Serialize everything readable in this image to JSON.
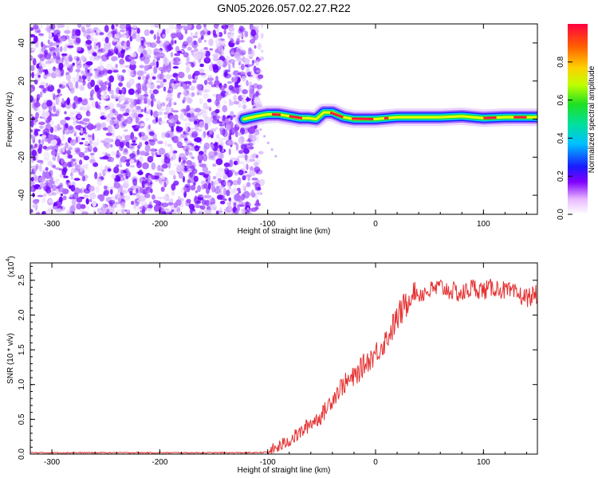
{
  "title": "GN05.2026.057.02.27.R22",
  "chart_data": [
    {
      "type": "heatmap",
      "name": "spectrogram",
      "xlabel": "Height of straight line (km)",
      "ylabel": "Frequency (Hz)",
      "xlim": [
        -320,
        150
      ],
      "ylim": [
        -50,
        50
      ],
      "x_ticks": [
        -300,
        -200,
        -100,
        0,
        100
      ],
      "y_ticks": [
        -40,
        -20,
        0,
        20,
        40
      ],
      "noise_region_x": [
        -320,
        -110
      ],
      "signal_line": {
        "x": [
          -122,
          -110,
          -100,
          -90,
          -80,
          -70,
          -62,
          -55,
          -48,
          -40,
          -30,
          -20,
          -10,
          0,
          10,
          20,
          40,
          60,
          80,
          100,
          120,
          150
        ],
        "y": [
          0,
          1.5,
          2.5,
          2.5,
          1.5,
          0.5,
          0.5,
          0,
          3.5,
          3.5,
          1,
          0,
          0,
          0,
          0.5,
          1,
          1,
          1,
          1.5,
          0.5,
          1,
          1
        ]
      },
      "colorbar": {
        "label": "Normalized spectral amplitude",
        "range": [
          0.0,
          1.0
        ],
        "ticks": [
          0.0,
          0.2,
          0.4,
          0.6,
          0.8
        ]
      }
    },
    {
      "type": "line",
      "name": "snr",
      "xlabel": "Height of straight line (km)",
      "ylabel": "SNR (10 * v/v)",
      "scale_label": "(x10",
      "scale_exponent": "4",
      "xlim": [
        -320,
        150
      ],
      "ylim": [
        0,
        2.75
      ],
      "x_ticks": [
        -300,
        -200,
        -100,
        0,
        100
      ],
      "y_ticks": [
        0.0,
        0.5,
        1.0,
        1.5,
        2.0,
        2.5
      ],
      "color": "#e53030",
      "series": [
        {
          "name": "SNR",
          "x": [
            -320,
            -200,
            -110,
            -100,
            -90,
            -80,
            -70,
            -60,
            -50,
            -40,
            -30,
            -20,
            -10,
            0,
            10,
            20,
            30,
            35,
            40,
            50,
            60,
            70,
            80,
            90,
            100,
            110,
            120,
            130,
            140,
            150
          ],
          "y": [
            0.02,
            0.02,
            0.02,
            0.03,
            0.1,
            0.2,
            0.3,
            0.45,
            0.55,
            0.8,
            1.0,
            1.1,
            1.3,
            1.45,
            1.65,
            1.95,
            2.2,
            2.35,
            2.3,
            2.35,
            2.4,
            2.35,
            2.3,
            2.4,
            2.35,
            2.4,
            2.35,
            2.3,
            2.25,
            2.3
          ]
        }
      ]
    }
  ]
}
